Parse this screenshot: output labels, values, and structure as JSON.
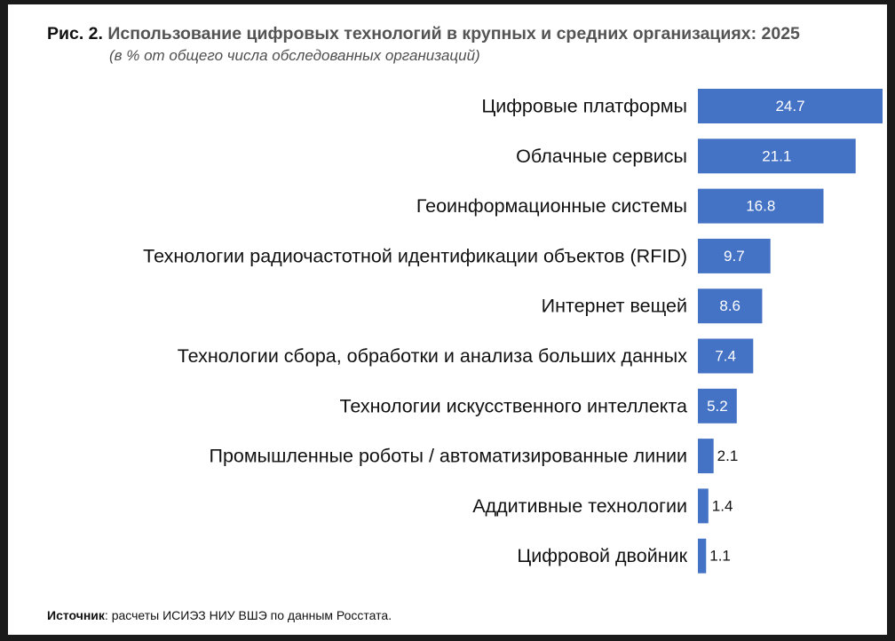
{
  "page": {
    "figure_number": "Рис. 2.",
    "title": "Использование цифровых технологий в крупных и средних организациях: 2025",
    "subtitle": "(в % от общего числа обследованных организаций)",
    "source_label": "Источник",
    "source_text": ": расчеты ИСИЭЗ НИУ ВШЭ по данным Росстата."
  },
  "chart_data": {
    "type": "bar",
    "orientation": "horizontal",
    "title": "Использование цифровых технологий в крупных и средних организациях: 2025",
    "subtitle": "(в % от общего числа обследованных организаций)",
    "categories": [
      "Цифровые платформы",
      "Облачные сервисы",
      "Геоинформационные системы",
      "Технологии радиочастотной идентификации объектов (RFID)",
      "Интернет вещей",
      "Технологии сбора, обработки и анализа больших данных",
      "Технологии искусственного интеллекта",
      "Промышленные роботы / автоматизированные линии",
      "Аддитивные технологии",
      "Цифровой двойник"
    ],
    "values": [
      24.7,
      21.1,
      16.8,
      9.7,
      8.6,
      7.4,
      5.2,
      2.1,
      1.4,
      1.1
    ],
    "value_labels": [
      "24.7",
      "21.1",
      "16.8",
      "9.7",
      "8.6",
      "7.4",
      "5.2",
      "2.1",
      "1.4",
      "1.1"
    ],
    "bar_color": "#4472c4",
    "xlim": [
      0,
      24.7
    ],
    "grid": false,
    "legend": "none"
  }
}
